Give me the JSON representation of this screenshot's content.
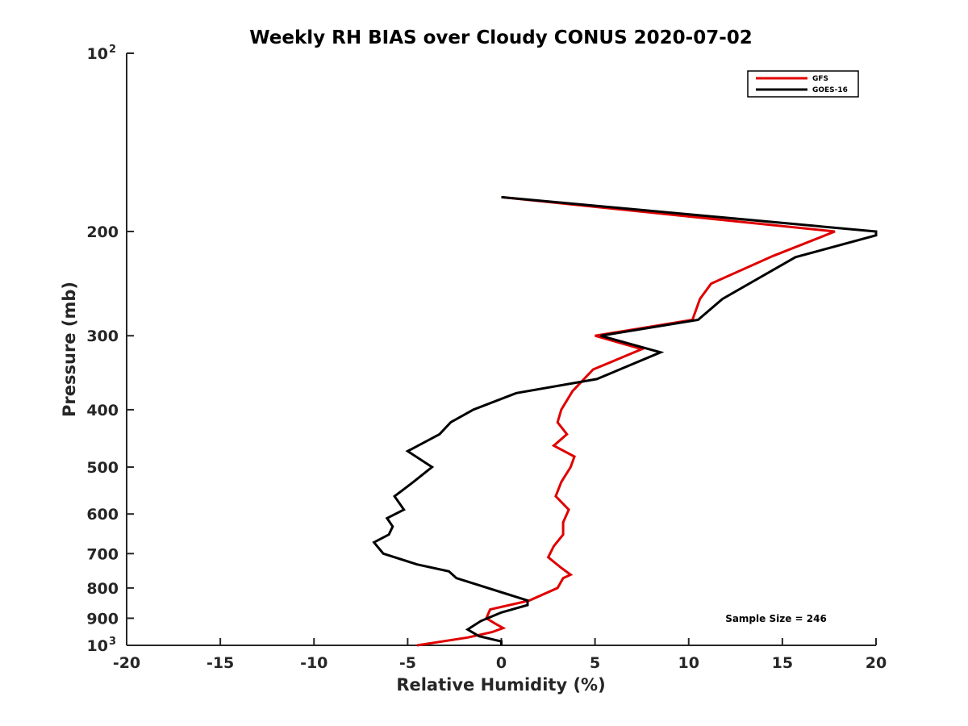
{
  "chart_data": {
    "type": "line",
    "title": "Weekly RH BIAS over Cloudy CONUS 2020-07-02",
    "xlabel": "Relative Humidity (%)",
    "ylabel": "Pressure (mb)",
    "xlim": [
      -20,
      20
    ],
    "ylim": [
      100,
      1000
    ],
    "y_scale": "log",
    "y_reversed": true,
    "x_ticks": [
      -20,
      -15,
      -10,
      -5,
      0,
      5,
      10,
      15,
      20
    ],
    "x_tick_labels": [
      "-20",
      "-15",
      "-10",
      "-5",
      "0",
      "5",
      "10",
      "15",
      "20"
    ],
    "y_ticks": [
      {
        "value": 100,
        "label": "10",
        "exp": "2"
      },
      {
        "value": 200,
        "label": "200"
      },
      {
        "value": 300,
        "label": "300"
      },
      {
        "value": 400,
        "label": "400"
      },
      {
        "value": 500,
        "label": "500"
      },
      {
        "value": 600,
        "label": "600"
      },
      {
        "value": 700,
        "label": "700"
      },
      {
        "value": 800,
        "label": "800"
      },
      {
        "value": 900,
        "label": "900"
      },
      {
        "value": 1000,
        "label": "10",
        "exp": "3"
      }
    ],
    "legend_position": "top-right",
    "annotation": "Sample Size = 246",
    "series": [
      {
        "name": "GFS",
        "color": "#e00000",
        "points": [
          {
            "x": 0,
            "y": 175
          },
          {
            "x": 17.8,
            "y": 200
          },
          {
            "x": 14.5,
            "y": 220
          },
          {
            "x": 11.2,
            "y": 245
          },
          {
            "x": 10.6,
            "y": 260
          },
          {
            "x": 10.2,
            "y": 282
          },
          {
            "x": 5.0,
            "y": 300
          },
          {
            "x": 7.5,
            "y": 316
          },
          {
            "x": 4.9,
            "y": 342
          },
          {
            "x": 3.8,
            "y": 372
          },
          {
            "x": 3.2,
            "y": 400
          },
          {
            "x": 3.0,
            "y": 420
          },
          {
            "x": 3.5,
            "y": 440
          },
          {
            "x": 2.8,
            "y": 460
          },
          {
            "x": 3.9,
            "y": 480
          },
          {
            "x": 3.7,
            "y": 500
          },
          {
            "x": 3.2,
            "y": 530
          },
          {
            "x": 2.9,
            "y": 560
          },
          {
            "x": 3.6,
            "y": 590
          },
          {
            "x": 3.3,
            "y": 620
          },
          {
            "x": 3.3,
            "y": 650
          },
          {
            "x": 2.8,
            "y": 680
          },
          {
            "x": 2.5,
            "y": 710
          },
          {
            "x": 3.2,
            "y": 740
          },
          {
            "x": 3.7,
            "y": 760
          },
          {
            "x": 3.3,
            "y": 770
          },
          {
            "x": 3.0,
            "y": 800
          },
          {
            "x": 1.5,
            "y": 840
          },
          {
            "x": -0.6,
            "y": 870
          },
          {
            "x": -0.8,
            "y": 900
          },
          {
            "x": -0.3,
            "y": 920
          },
          {
            "x": 0.1,
            "y": 935
          },
          {
            "x": -0.5,
            "y": 950
          },
          {
            "x": -1.8,
            "y": 970
          },
          {
            "x": -4.5,
            "y": 1000
          }
        ]
      },
      {
        "name": "GOES-16",
        "color": "#000000",
        "points": [
          {
            "x": 0,
            "y": 175
          },
          {
            "x": 20,
            "y": 200
          },
          {
            "x": 20,
            "y": 203
          },
          {
            "x": 15.7,
            "y": 221
          },
          {
            "x": 11.8,
            "y": 260
          },
          {
            "x": 10.5,
            "y": 282
          },
          {
            "x": 5.3,
            "y": 300
          },
          {
            "x": 8.5,
            "y": 320
          },
          {
            "x": 5.1,
            "y": 355
          },
          {
            "x": 0.8,
            "y": 375
          },
          {
            "x": -1.5,
            "y": 400
          },
          {
            "x": -2.7,
            "y": 420
          },
          {
            "x": -3.3,
            "y": 440
          },
          {
            "x": -5.0,
            "y": 470
          },
          {
            "x": -3.7,
            "y": 500
          },
          {
            "x": -4.7,
            "y": 530
          },
          {
            "x": -5.7,
            "y": 560
          },
          {
            "x": -5.2,
            "y": 590
          },
          {
            "x": -6.1,
            "y": 610
          },
          {
            "x": -5.8,
            "y": 630
          },
          {
            "x": -6.0,
            "y": 650
          },
          {
            "x": -6.8,
            "y": 670
          },
          {
            "x": -6.3,
            "y": 700
          },
          {
            "x": -4.5,
            "y": 730
          },
          {
            "x": -2.8,
            "y": 750
          },
          {
            "x": -2.4,
            "y": 770
          },
          {
            "x": 1.4,
            "y": 840
          },
          {
            "x": 1.4,
            "y": 855
          },
          {
            "x": 0,
            "y": 880
          },
          {
            "x": -1.1,
            "y": 910
          },
          {
            "x": -1.8,
            "y": 940
          },
          {
            "x": -1.2,
            "y": 965
          },
          {
            "x": 0,
            "y": 985
          },
          {
            "x": 0,
            "y": 1000
          }
        ]
      }
    ]
  }
}
